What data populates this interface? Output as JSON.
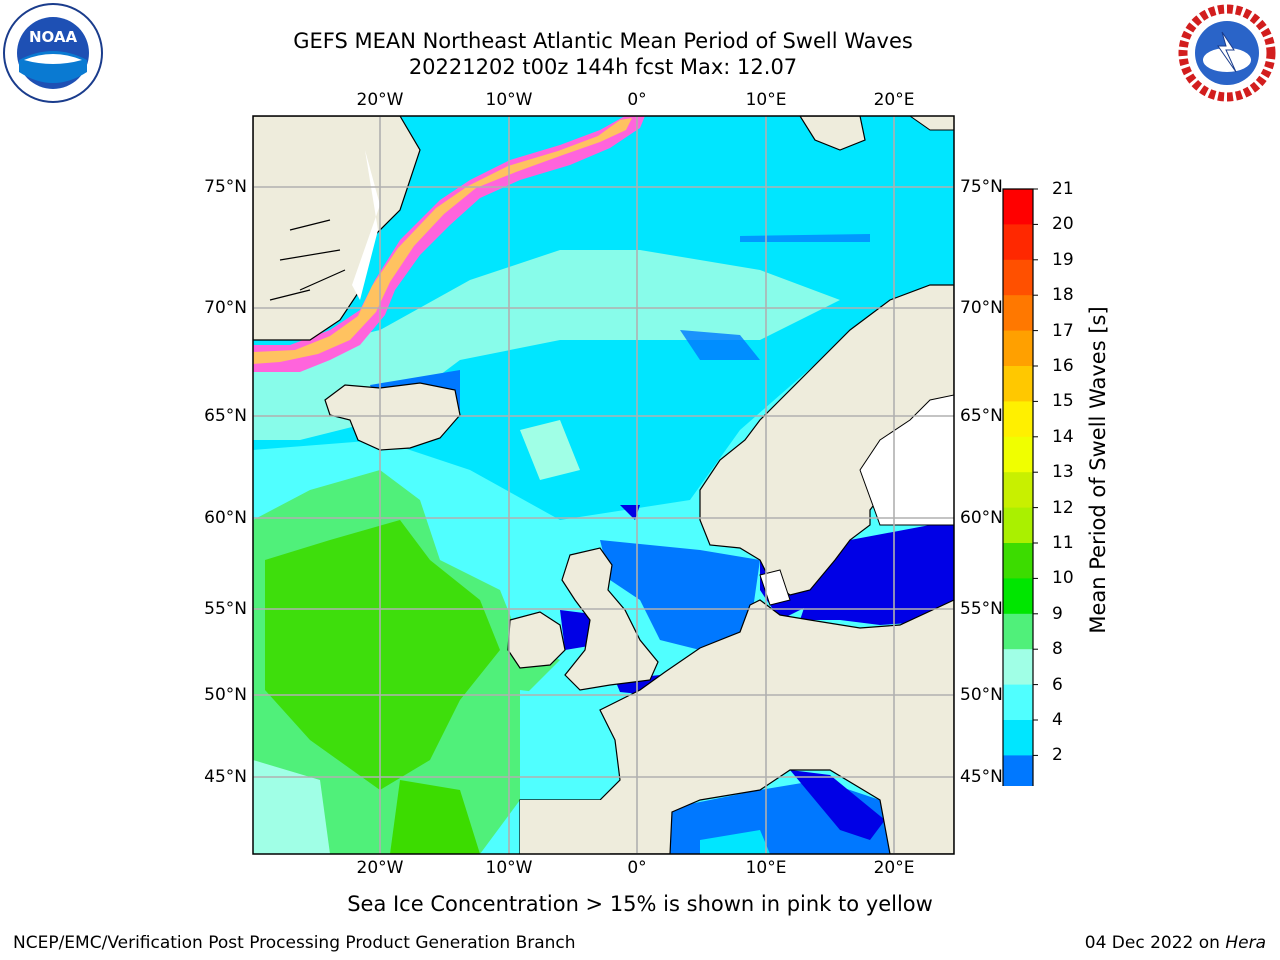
{
  "header": {
    "title_line1": "GEFS MEAN Northeast Atlantic Mean Period of Swell Waves",
    "title_line2": "20221202 t00z 144h fcst   Max: 12.07",
    "left_logo_text": "NOAA",
    "right_logo_text": "NATIONAL WEATHER SERVICE"
  },
  "map": {
    "lon_labels": [
      "20°W",
      "10°W",
      "0°",
      "10°E",
      "20°E"
    ],
    "lat_labels": [
      "75°N",
      "70°N",
      "65°N",
      "60°N",
      "55°N",
      "50°N",
      "45°N"
    ],
    "land_color": "#eeecdc",
    "grid_color": "#b0b0b0"
  },
  "colorbar": {
    "label": "Mean Period of Swell Waves [s]",
    "ticks": [
      "21",
      "20",
      "19",
      "18",
      "17",
      "16",
      "15",
      "14",
      "13",
      "12",
      "11",
      "10",
      "9",
      "8",
      "6",
      "4",
      "2"
    ],
    "colors_top_to_bottom": [
      "#ff0000",
      "#ff2800",
      "#ff5000",
      "#ff7800",
      "#ffa000",
      "#ffc800",
      "#fff000",
      "#f0ff00",
      "#c8f000",
      "#aaf000",
      "#3cdc00",
      "#00e600",
      "#50f07a",
      "#a0ffe6",
      "#50ffff",
      "#00e6ff",
      "#0078ff"
    ],
    "extend_color": "#0000e6"
  },
  "caption": "Sea Ice Concentration > 15% is shown in pink to yellow",
  "footer": {
    "left": "NCEP/EMC/Verification Post Processing Product Generation Branch",
    "date": "04 Dec 2022 on",
    "machine": "Hera"
  }
}
